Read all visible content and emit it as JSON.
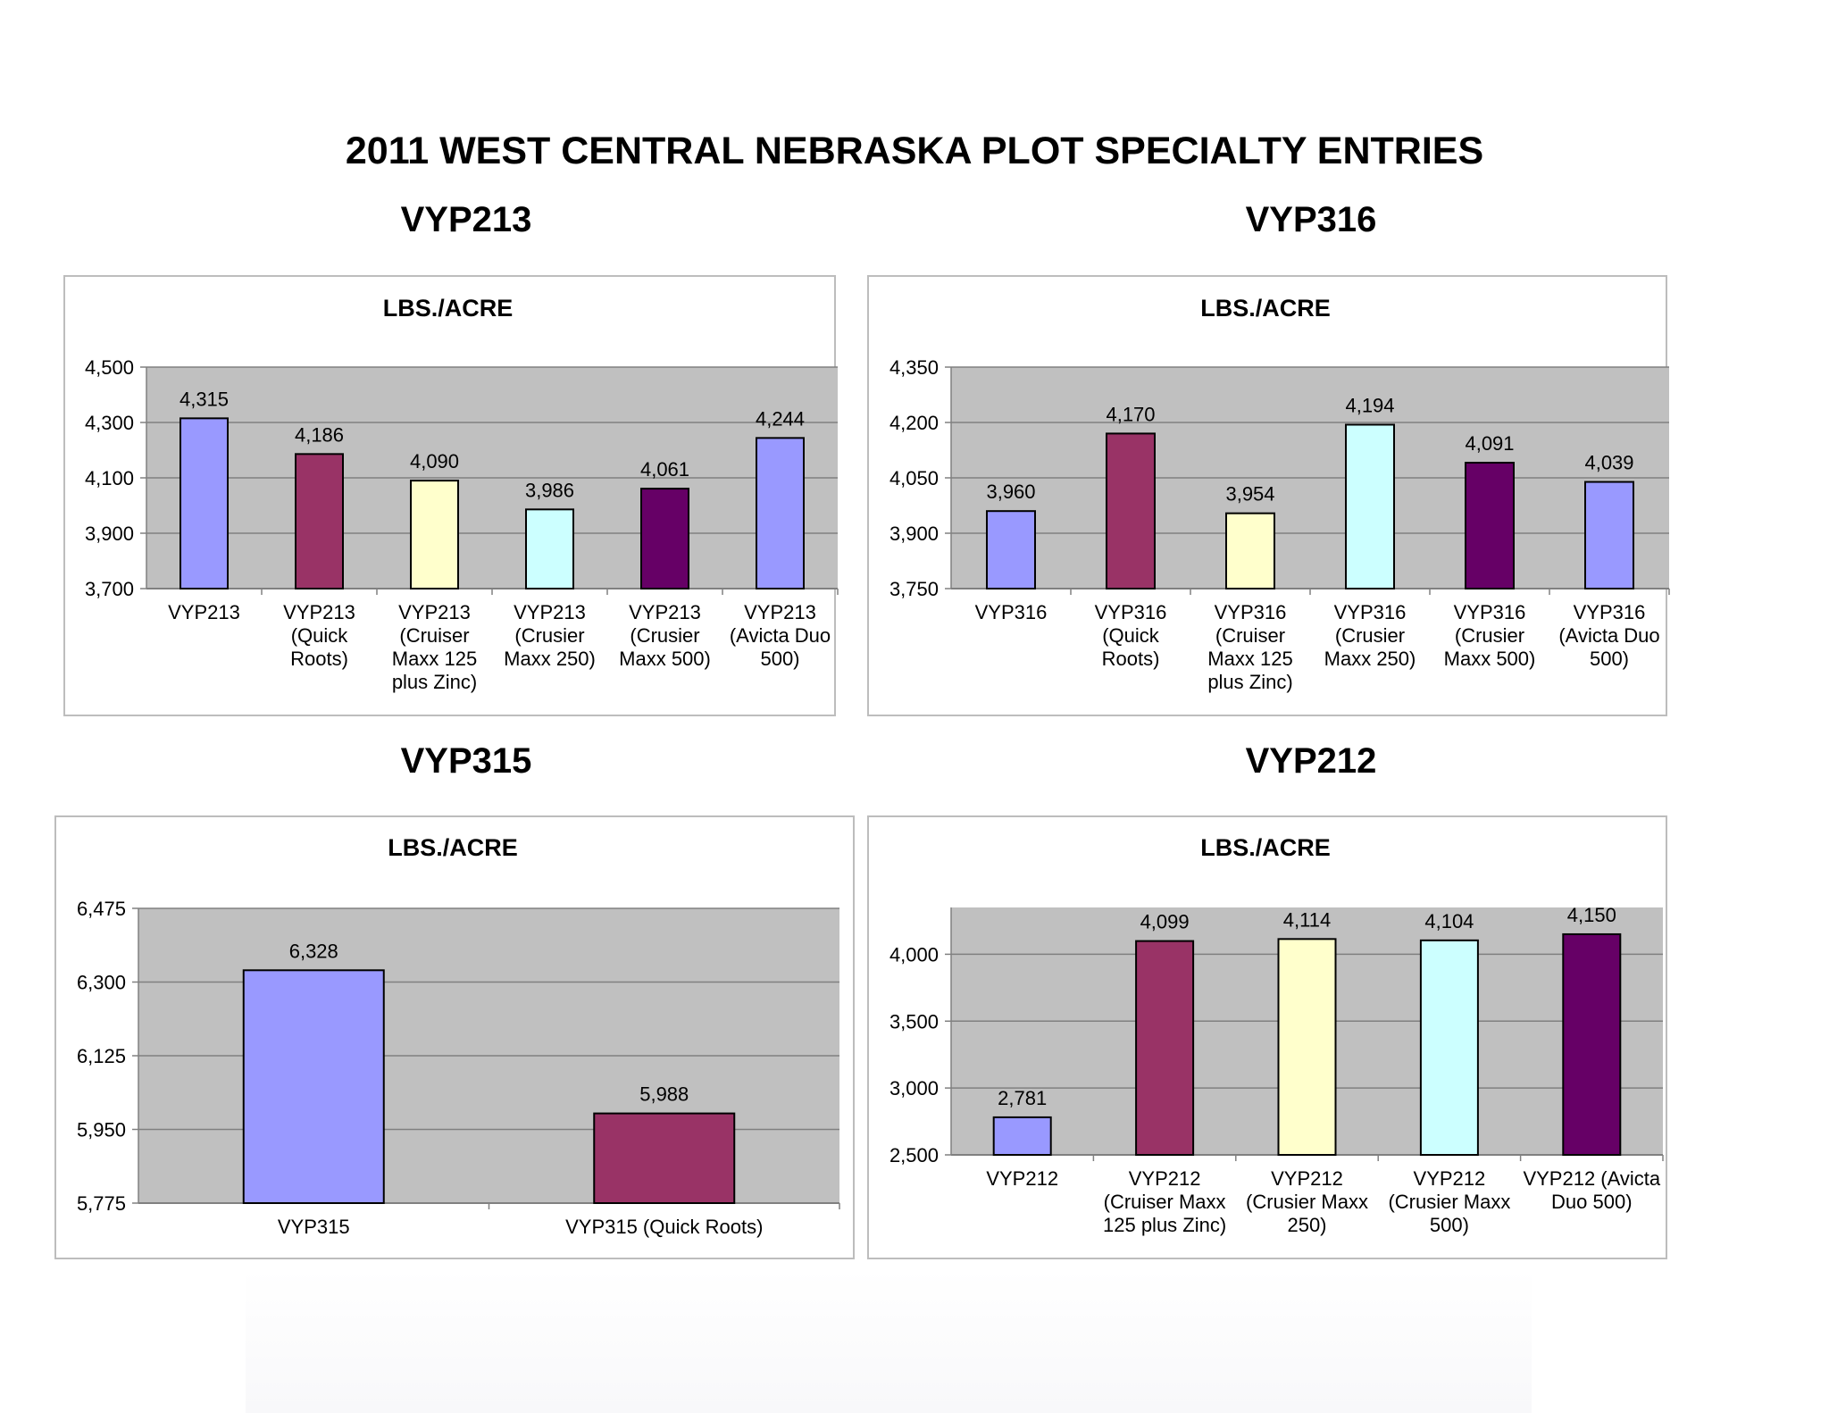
{
  "page": {
    "title": "2011 WEST CENTRAL NEBRASKA PLOT SPECIALTY ENTRIES"
  },
  "chart_data": [
    {
      "id": "vyp213",
      "type": "bar",
      "heading": "VYP213",
      "title": "LBS./ACRE",
      "categories": [
        "VYP213",
        "VYP213 (Quick Roots)",
        "VYP213 (Cruiser Maxx 125 plus Zinc)",
        "VYP213 (Crusier Maxx 250)",
        "VYP213 (Crusier Maxx 500)",
        "VYP213 (Avicta Duo 500)"
      ],
      "category_lines": [
        [
          "VYP213"
        ],
        [
          "VYP213",
          "(Quick",
          "Roots)"
        ],
        [
          "VYP213",
          "(Cruiser",
          "Maxx 125",
          "plus Zinc)"
        ],
        [
          "VYP213",
          "(Crusier",
          "Maxx 250)"
        ],
        [
          "VYP213",
          "(Crusier",
          "Maxx 500)"
        ],
        [
          "VYP213",
          "(Avicta Duo",
          "500)"
        ]
      ],
      "values": [
        4315,
        4186,
        4090,
        3986,
        4061,
        4244
      ],
      "value_labels": [
        "4,315",
        "4,186",
        "4,090",
        "3,986",
        "4,061",
        "4,244"
      ],
      "colors": [
        "#9999ff",
        "#993366",
        "#ffffcc",
        "#ccffff",
        "#660066",
        "#9999ff"
      ],
      "ylim": [
        3700,
        4500
      ],
      "yticks": [
        3700,
        3900,
        4100,
        4300,
        4500
      ],
      "ytick_labels": [
        "3,700",
        "3,900",
        "4,100",
        "4,300",
        "4,500"
      ],
      "grid": true,
      "legend": "none"
    },
    {
      "id": "vyp316",
      "type": "bar",
      "heading": "VYP316",
      "title": "LBS./ACRE",
      "categories": [
        "VYP316",
        "VYP316 (Quick Roots)",
        "VYP316 (Cruiser Maxx 125 plus Zinc)",
        "VYP316 (Crusier Maxx 250)",
        "VYP316 (Crusier Maxx 500)",
        "VYP316 (Avicta Duo 500)"
      ],
      "category_lines": [
        [
          "VYP316"
        ],
        [
          "VYP316",
          "(Quick",
          "Roots)"
        ],
        [
          "VYP316",
          "(Cruiser",
          "Maxx 125",
          "plus Zinc)"
        ],
        [
          "VYP316",
          "(Crusier",
          "Maxx 250)"
        ],
        [
          "VYP316",
          "(Crusier",
          "Maxx 500)"
        ],
        [
          "VYP316",
          "(Avicta Duo",
          "500)"
        ]
      ],
      "values": [
        3960,
        4170,
        3954,
        4194,
        4091,
        4039
      ],
      "value_labels": [
        "3,960",
        "4,170",
        "3,954",
        "4,194",
        "4,091",
        "4,039"
      ],
      "colors": [
        "#9999ff",
        "#993366",
        "#ffffcc",
        "#ccffff",
        "#660066",
        "#9999ff"
      ],
      "ylim": [
        3750,
        4350
      ],
      "yticks": [
        3750,
        3900,
        4050,
        4200,
        4350
      ],
      "ytick_labels": [
        "3,750",
        "3,900",
        "4,050",
        "4,200",
        "4,350"
      ],
      "grid": true,
      "legend": "none"
    },
    {
      "id": "vyp315",
      "type": "bar",
      "heading": "VYP315",
      "title": "LBS./ACRE",
      "categories": [
        "VYP315",
        "VYP315 (Quick Roots)"
      ],
      "category_lines": [
        [
          "VYP315"
        ],
        [
          "VYP315 (Quick Roots)"
        ]
      ],
      "values": [
        6328,
        5988
      ],
      "value_labels": [
        "6,328",
        "5,988"
      ],
      "colors": [
        "#9999ff",
        "#993366"
      ],
      "ylim": [
        5775,
        6475
      ],
      "yticks": [
        5775,
        5950,
        6125,
        6300,
        6475
      ],
      "ytick_labels": [
        "5,775",
        "5,950",
        "6,125",
        "6,300",
        "6,475"
      ],
      "grid": true,
      "legend": "none"
    },
    {
      "id": "vyp212",
      "type": "bar",
      "heading": "VYP212",
      "title": "LBS./ACRE",
      "categories": [
        "VYP212",
        "VYP212 (Cruiser Maxx 125 plus Zinc)",
        "VYP212 (Crusier Maxx 250)",
        "VYP212 (Crusier Maxx 500)",
        "VYP212 (Avicta Duo 500)"
      ],
      "category_lines": [
        [
          "VYP212"
        ],
        [
          "VYP212",
          "(Cruiser Maxx",
          "125 plus Zinc)"
        ],
        [
          "VYP212",
          "(Crusier Maxx",
          "250)"
        ],
        [
          "VYP212",
          "(Crusier Maxx",
          "500)"
        ],
        [
          "VYP212 (Avicta",
          "Duo 500)"
        ]
      ],
      "values": [
        2781,
        4099,
        4114,
        4104,
        4150
      ],
      "value_labels": [
        "2,781",
        "4,099",
        "4,114",
        "4,104",
        "4,150"
      ],
      "colors": [
        "#9999ff",
        "#993366",
        "#ffffcc",
        "#ccffff",
        "#660066"
      ],
      "ylim": [
        2500,
        4350
      ],
      "yticks": [
        2500,
        3000,
        3500,
        4000
      ],
      "ytick_labels": [
        "2,500",
        "3,000",
        "3,500",
        "4,000"
      ],
      "grid": true,
      "legend": "none"
    }
  ]
}
